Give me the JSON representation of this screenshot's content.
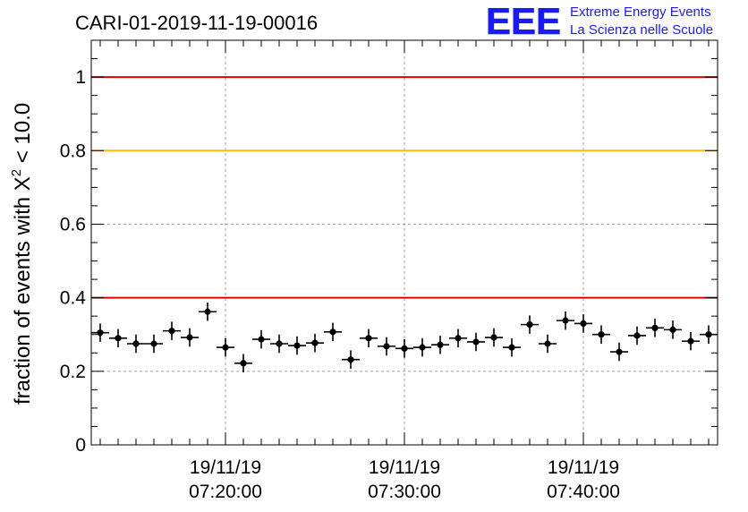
{
  "logo": {
    "mark": "EEE",
    "line1": "Extreme Energy Events",
    "line2": "La Scienza nelle Scuole",
    "color": "#1a1aff"
  },
  "chart_data": {
    "type": "scatter",
    "title": "CARI-01-2019-11-19-00016",
    "ylabel_prefix": "fraction of events with ",
    "ylabel_symbol": "X",
    "ylabel_sup": "2",
    "ylabel_suffix": " < 10.0",
    "xlabel": "",
    "ylim": [
      0,
      1.1
    ],
    "xlim": [
      "07:12:30",
      "07:47:30"
    ],
    "grid": true,
    "legend": "none",
    "y_ticks": [
      {
        "value": 0,
        "label": "0"
      },
      {
        "value": 0.2,
        "label": "0.2"
      },
      {
        "value": 0.4,
        "label": "0.4"
      },
      {
        "value": 0.6,
        "label": "0.6"
      },
      {
        "value": 0.8,
        "label": "0.8"
      },
      {
        "value": 1.0,
        "label": "1"
      }
    ],
    "x_ticks": [
      {
        "time": "07:20:00",
        "date_label": "19/11/19",
        "time_label": "07:20:00"
      },
      {
        "time": "07:30:00",
        "date_label": "19/11/19",
        "time_label": "07:30:00"
      },
      {
        "time": "07:40:00",
        "date_label": "19/11/19",
        "time_label": "07:40:00"
      }
    ],
    "reference_lines": [
      {
        "y": 1.0,
        "color": "#e00000"
      },
      {
        "y": 0.8,
        "color": "#ffc000"
      },
      {
        "y": 0.4,
        "color": "#e00000"
      }
    ],
    "series": [
      {
        "color": "#000000",
        "points": [
          {
            "x": "07:13:00",
            "y": 0.305
          },
          {
            "x": "07:14:00",
            "y": 0.29
          },
          {
            "x": "07:15:00",
            "y": 0.275
          },
          {
            "x": "07:16:00",
            "y": 0.275
          },
          {
            "x": "07:17:00",
            "y": 0.31
          },
          {
            "x": "07:18:00",
            "y": 0.292
          },
          {
            "x": "07:19:00",
            "y": 0.362
          },
          {
            "x": "07:20:00",
            "y": 0.265
          },
          {
            "x": "07:21:00",
            "y": 0.222
          },
          {
            "x": "07:22:00",
            "y": 0.287
          },
          {
            "x": "07:23:00",
            "y": 0.275
          },
          {
            "x": "07:24:00",
            "y": 0.27
          },
          {
            "x": "07:25:00",
            "y": 0.277
          },
          {
            "x": "07:26:00",
            "y": 0.307
          },
          {
            "x": "07:27:00",
            "y": 0.232
          },
          {
            "x": "07:28:00",
            "y": 0.29
          },
          {
            "x": "07:29:00",
            "y": 0.268
          },
          {
            "x": "07:30:00",
            "y": 0.262
          },
          {
            "x": "07:31:00",
            "y": 0.265
          },
          {
            "x": "07:32:00",
            "y": 0.272
          },
          {
            "x": "07:33:00",
            "y": 0.29
          },
          {
            "x": "07:34:00",
            "y": 0.28
          },
          {
            "x": "07:35:00",
            "y": 0.292
          },
          {
            "x": "07:36:00",
            "y": 0.265
          },
          {
            "x": "07:37:00",
            "y": 0.327
          },
          {
            "x": "07:38:00",
            "y": 0.275
          },
          {
            "x": "07:39:00",
            "y": 0.338
          },
          {
            "x": "07:40:00",
            "y": 0.33
          },
          {
            "x": "07:41:00",
            "y": 0.3
          },
          {
            "x": "07:42:00",
            "y": 0.253
          },
          {
            "x": "07:43:00",
            "y": 0.297
          },
          {
            "x": "07:44:00",
            "y": 0.318
          },
          {
            "x": "07:45:00",
            "y": 0.313
          },
          {
            "x": "07:46:00",
            "y": 0.282
          },
          {
            "x": "07:47:00",
            "y": 0.3
          }
        ],
        "x_error_minutes": 0.5,
        "y_error": 0.025
      }
    ]
  }
}
